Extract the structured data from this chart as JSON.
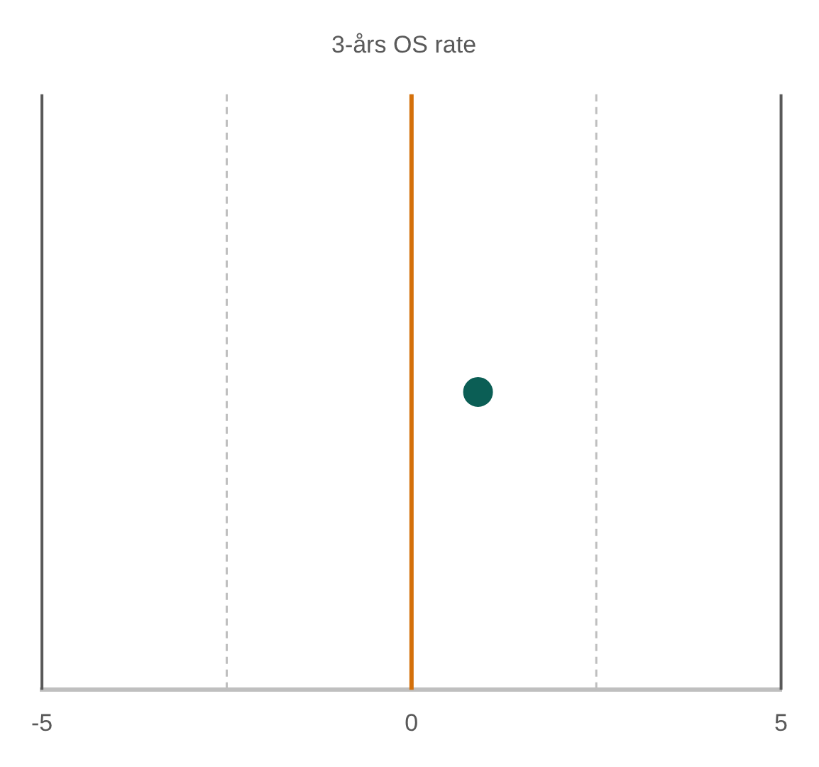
{
  "chart_data": {
    "type": "scatter",
    "title": "3-års OS rate",
    "orientation": "horizontal",
    "categories": [
      null
    ],
    "series": [
      {
        "color": "#0b5e55",
        "values": [
          0.9
        ]
      }
    ],
    "xlim": [
      -5,
      5
    ],
    "xticks": [
      -5,
      {
        "value": -2.5,
        "label": null
      },
      0,
      {
        "value": 2.5,
        "label": null
      },
      5
    ],
    "grid": "x",
    "legend": false,
    "marker": "circle",
    "ref_lines": [
      {
        "axis": "x",
        "value": 0,
        "color": "#d4700a"
      }
    ]
  }
}
